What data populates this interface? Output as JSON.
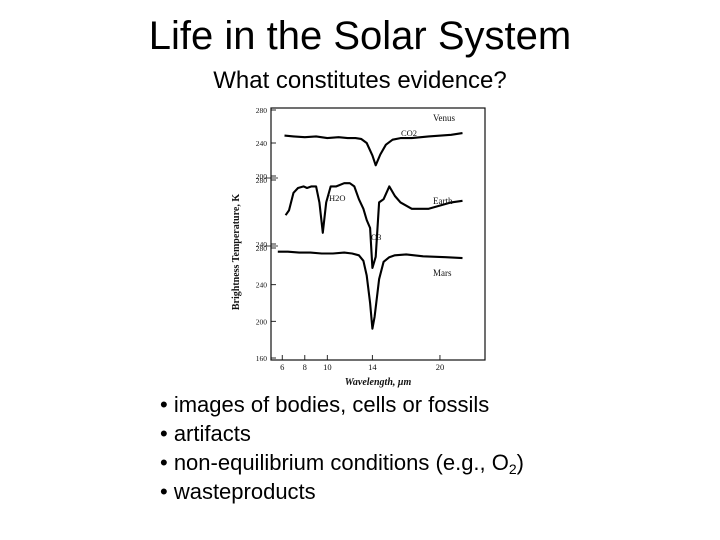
{
  "title": "Life in the Solar System",
  "subtitle": "What constitutes evidence?",
  "bullets": [
    {
      "prefix": "• images of bodies, cells or fossils"
    },
    {
      "prefix": "• artifacts"
    },
    {
      "prefix": "• non-equilibrium conditions (e.g., O",
      "sub": "2",
      "suffix": ")"
    },
    {
      "prefix": "• wasteproducts"
    }
  ],
  "chart_data": {
    "type": "line",
    "xlabel": "Wavelength, μm",
    "ylabel": "Brightness Temperature, K",
    "x_ticks": [
      "6",
      "8",
      "10",
      "14",
      "20"
    ],
    "x_tick_values": [
      6,
      8,
      10,
      14,
      20
    ],
    "xlim": [
      5,
      24
    ],
    "grid": false,
    "series": [
      {
        "name": "Venus",
        "y_ticks": [
          "280",
          "240",
          "200"
        ],
        "y_tick_values": [
          280,
          240,
          200
        ],
        "ylim": [
          200,
          280
        ],
        "annotations": [
          {
            "text": "CO2"
          }
        ],
        "x": [
          6.2,
          7.0,
          8.0,
          9.0,
          10.0,
          11.0,
          11.8,
          12.5,
          13.0,
          13.5,
          14.0,
          14.3,
          14.7,
          15.2,
          15.8,
          16.5,
          17.5,
          19.0,
          21.0,
          22.0
        ],
        "y": [
          249,
          248,
          247,
          248,
          246,
          247,
          246,
          246,
          245,
          240,
          225,
          213,
          226,
          238,
          244,
          246,
          246,
          248,
          250,
          252
        ]
      },
      {
        "name": "Earth",
        "y_ticks": [
          "280",
          "240"
        ],
        "y_tick_values": [
          280,
          240
        ],
        "ylim": [
          240,
          280
        ],
        "annotations": [
          {
            "text": "H2O"
          },
          {
            "text": "O3"
          }
        ],
        "x": [
          6.3,
          6.6,
          7.0,
          7.4,
          7.9,
          8.2,
          8.6,
          9.0,
          9.3,
          9.6,
          9.9,
          10.3,
          10.8,
          11.5,
          12.0,
          12.4,
          12.8,
          13.2,
          13.5,
          13.8,
          14.0,
          14.3,
          14.6,
          15.0,
          15.5,
          16.0,
          16.5,
          17.5,
          19.0,
          21.0,
          22.0
        ],
        "y": [
          258,
          261,
          272,
          275,
          276,
          275,
          276,
          276,
          266,
          247,
          266,
          276,
          276,
          278,
          278,
          276,
          268,
          262,
          255,
          250,
          225,
          232,
          266,
          268,
          276,
          270,
          266,
          262,
          262,
          266,
          267
        ]
      },
      {
        "name": "Mars",
        "y_ticks": [
          "280",
          "240",
          "200",
          "160"
        ],
        "y_tick_values": [
          280,
          240,
          200,
          160
        ],
        "ylim": [
          160,
          280
        ],
        "x": [
          5.6,
          6.5,
          7.5,
          8.5,
          9.5,
          10.5,
          11.5,
          12.2,
          12.8,
          13.2,
          13.5,
          13.8,
          14.0,
          14.2,
          14.6,
          15.0,
          15.5,
          16.0,
          17.0,
          18.5,
          20.5,
          22.0
        ],
        "y": [
          276,
          276,
          275,
          275,
          274,
          274,
          275,
          274,
          272,
          266,
          250,
          220,
          192,
          205,
          246,
          265,
          270,
          272,
          273,
          271,
          270,
          269
        ]
      }
    ]
  }
}
